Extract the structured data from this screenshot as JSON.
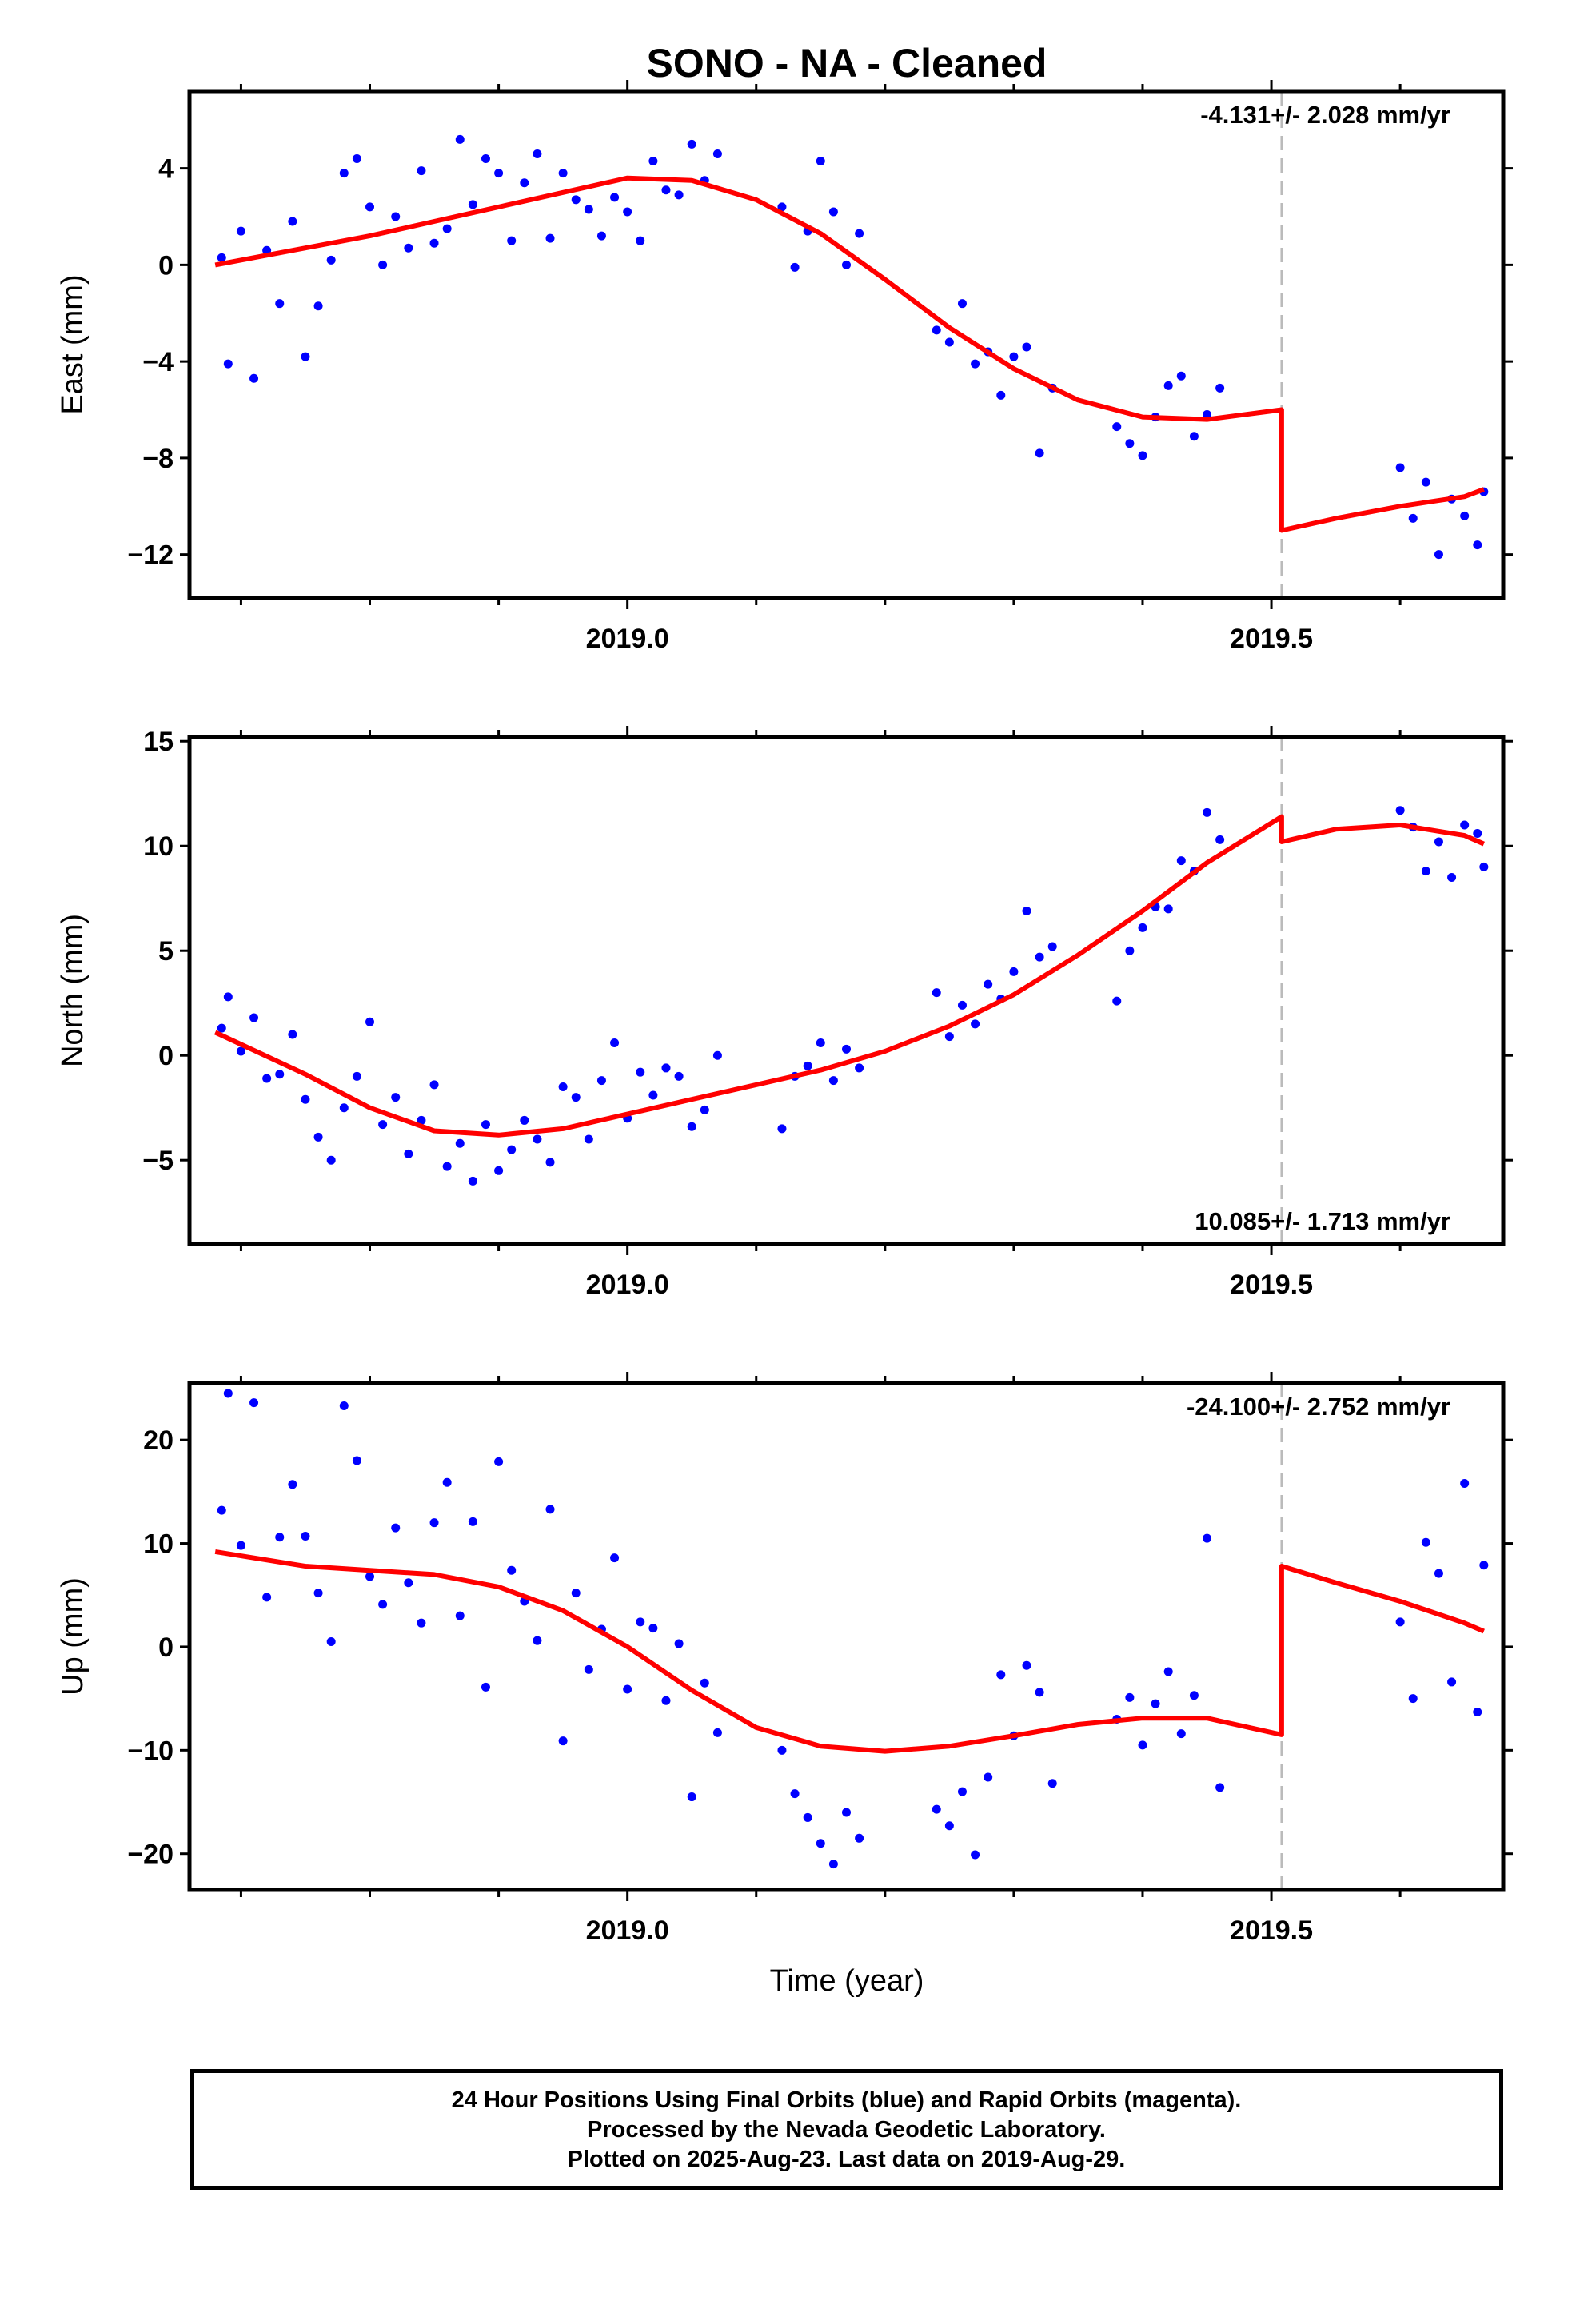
{
  "title": "SONO  - NA - Cleaned",
  "x_axis_label": "Time (year)",
  "footer": {
    "line1": "24 Hour Positions Using Final Orbits (blue) and Rapid Orbits (magenta).",
    "line2": "Processed by the Nevada Geodetic Laboratory.",
    "line3": "Plotted on 2025-Aug-23. Last data on 2019-Aug-29."
  },
  "colors": {
    "data_points": "#0000ff",
    "model_fit": "#ff0000",
    "offset_line": "#bbbbbb"
  },
  "chart_data": [
    {
      "type": "scatter",
      "ylabel": "East (mm)",
      "rate_label": "-4.131+/- 2.028 mm/yr",
      "rate_position": "top-right",
      "xlim": [
        2018.66,
        2019.68
      ],
      "ylim": [
        -13.8,
        7.2
      ],
      "xticks": [
        2019.0,
        2019.5
      ],
      "xtick_labels": [
        "2019.0",
        "2019.5"
      ],
      "yticks": [
        -12,
        -8,
        -4,
        0,
        4
      ],
      "yticks_minor": [],
      "offset_x": 2019.508,
      "fit_x": [
        2018.68,
        2018.75,
        2018.8,
        2018.85,
        2018.9,
        2018.95,
        2019.0,
        2019.05,
        2019.1,
        2019.15,
        2019.2,
        2019.25,
        2019.3,
        2019.35,
        2019.4,
        2019.45,
        2019.508,
        2019.508,
        2019.55,
        2019.6,
        2019.65,
        2019.665
      ],
      "fit_y": [
        0.0,
        0.7,
        1.2,
        1.8,
        2.4,
        3.0,
        3.6,
        3.5,
        2.7,
        1.3,
        -0.6,
        -2.6,
        -4.3,
        -5.6,
        -6.3,
        -6.4,
        -6.0,
        -11.0,
        -10.5,
        -10.0,
        -9.6,
        -9.3
      ],
      "points_x": [
        2018.685,
        2018.69,
        2018.7,
        2018.71,
        2018.72,
        2018.73,
        2018.74,
        2018.75,
        2018.76,
        2018.77,
        2018.78,
        2018.79,
        2018.8,
        2018.81,
        2018.82,
        2018.83,
        2018.84,
        2018.85,
        2018.86,
        2018.87,
        2018.88,
        2018.89,
        2018.9,
        2018.91,
        2018.92,
        2018.93,
        2018.94,
        2018.95,
        2018.96,
        2018.97,
        2018.98,
        2018.99,
        2019.0,
        2019.01,
        2019.02,
        2019.03,
        2019.04,
        2019.05,
        2019.06,
        2019.07,
        2019.12,
        2019.13,
        2019.14,
        2019.15,
        2019.16,
        2019.17,
        2019.18,
        2019.24,
        2019.25,
        2019.26,
        2019.27,
        2019.28,
        2019.29,
        2019.3,
        2019.31,
        2019.32,
        2019.33,
        2019.38,
        2019.39,
        2019.4,
        2019.41,
        2019.42,
        2019.43,
        2019.44,
        2019.45,
        2019.46,
        2019.6,
        2019.61,
        2019.62,
        2019.63,
        2019.64,
        2019.65,
        2019.66,
        2019.665
      ],
      "points_y": [
        0.3,
        -4.1,
        1.4,
        -4.7,
        0.6,
        -1.6,
        1.8,
        -3.8,
        -1.7,
        0.2,
        3.8,
        4.4,
        2.4,
        0.0,
        2.0,
        0.7,
        3.9,
        0.9,
        1.5,
        5.2,
        2.5,
        4.4,
        3.8,
        1.0,
        3.4,
        4.6,
        1.1,
        3.8,
        2.7,
        2.3,
        1.2,
        2.8,
        2.2,
        1.0,
        4.3,
        3.1,
        2.9,
        5.0,
        3.5,
        4.6,
        2.4,
        -0.1,
        1.4,
        4.3,
        2.2,
        0.0,
        1.3,
        -2.7,
        -3.2,
        -1.6,
        -4.1,
        -3.6,
        -5.4,
        -3.8,
        -3.4,
        -7.8,
        -5.1,
        -6.7,
        -7.4,
        -7.9,
        -6.3,
        -5.0,
        -4.6,
        -7.1,
        -6.2,
        -5.1,
        -8.4,
        -10.5,
        -9.0,
        -12.0,
        -9.7,
        -10.4,
        -11.6,
        -9.4
      ]
    },
    {
      "type": "scatter",
      "ylabel": "North (mm)",
      "rate_label": "10.085+/- 1.713 mm/yr",
      "rate_position": "bottom-right",
      "xlim": [
        2018.66,
        2019.68
      ],
      "ylim": [
        -9,
        15.2
      ],
      "xticks": [
        2019.0,
        2019.5
      ],
      "xtick_labels": [
        "2019.0",
        "2019.5"
      ],
      "yticks": [
        -5,
        0,
        5,
        10,
        15
      ],
      "yticks_minor": [],
      "offset_x": 2019.508,
      "fit_x": [
        2018.68,
        2018.75,
        2018.8,
        2018.85,
        2018.9,
        2018.95,
        2019.0,
        2019.05,
        2019.1,
        2019.15,
        2019.2,
        2019.25,
        2019.3,
        2019.35,
        2019.4,
        2019.45,
        2019.508,
        2019.508,
        2019.55,
        2019.6,
        2019.65,
        2019.665
      ],
      "fit_y": [
        1.1,
        -0.9,
        -2.5,
        -3.6,
        -3.8,
        -3.5,
        -2.8,
        -2.1,
        -1.4,
        -0.7,
        0.2,
        1.4,
        2.9,
        4.8,
        6.9,
        9.2,
        11.4,
        10.2,
        10.8,
        11.0,
        10.5,
        10.1
      ],
      "points_x": [
        2018.685,
        2018.69,
        2018.7,
        2018.71,
        2018.72,
        2018.73,
        2018.74,
        2018.75,
        2018.76,
        2018.77,
        2018.78,
        2018.79,
        2018.8,
        2018.81,
        2018.82,
        2018.83,
        2018.84,
        2018.85,
        2018.86,
        2018.87,
        2018.88,
        2018.89,
        2018.9,
        2018.91,
        2018.92,
        2018.93,
        2018.94,
        2018.95,
        2018.96,
        2018.97,
        2018.98,
        2018.99,
        2019.0,
        2019.01,
        2019.02,
        2019.03,
        2019.04,
        2019.05,
        2019.06,
        2019.07,
        2019.12,
        2019.13,
        2019.14,
        2019.15,
        2019.16,
        2019.17,
        2019.18,
        2019.24,
        2019.25,
        2019.26,
        2019.27,
        2019.28,
        2019.29,
        2019.3,
        2019.31,
        2019.32,
        2019.33,
        2019.38,
        2019.39,
        2019.4,
        2019.41,
        2019.42,
        2019.43,
        2019.44,
        2019.45,
        2019.46,
        2019.6,
        2019.61,
        2019.62,
        2019.63,
        2019.64,
        2019.65,
        2019.66,
        2019.665
      ],
      "points_y": [
        1.3,
        2.8,
        0.2,
        1.8,
        -1.1,
        -0.9,
        1.0,
        -2.1,
        -3.9,
        -5.0,
        -2.5,
        -1.0,
        1.6,
        -3.3,
        -2.0,
        -4.7,
        -3.1,
        -1.4,
        -5.3,
        -4.2,
        -6.0,
        -3.3,
        -5.5,
        -4.5,
        -3.1,
        -4.0,
        -5.1,
        -1.5,
        -2.0,
        -4.0,
        -1.2,
        0.6,
        -3.0,
        -0.8,
        -1.9,
        -0.6,
        -1.0,
        -3.4,
        -2.6,
        0.0,
        -3.5,
        -1.0,
        -0.5,
        0.6,
        -1.2,
        0.3,
        -0.6,
        3.0,
        0.9,
        2.4,
        1.5,
        3.4,
        2.7,
        4.0,
        6.9,
        4.7,
        5.2,
        2.6,
        5.0,
        6.1,
        7.1,
        7.0,
        9.3,
        8.8,
        11.6,
        10.3,
        11.7,
        10.9,
        8.8,
        10.2,
        8.5,
        11.0,
        10.6,
        9.0
      ]
    },
    {
      "type": "scatter",
      "ylabel": "Up (mm)",
      "rate_label": "-24.100+/- 2.752 mm/yr",
      "rate_position": "top-right",
      "xlim": [
        2018.66,
        2019.68
      ],
      "ylim": [
        -23.5,
        25.5
      ],
      "xticks": [
        2019.0,
        2019.5
      ],
      "xtick_labels": [
        "2019.0",
        "2019.5"
      ],
      "yticks": [
        -20,
        -10,
        0,
        10,
        20
      ],
      "yticks_minor": [],
      "offset_x": 2019.508,
      "fit_x": [
        2018.68,
        2018.75,
        2018.8,
        2018.85,
        2018.9,
        2018.95,
        2019.0,
        2019.05,
        2019.1,
        2019.15,
        2019.2,
        2019.25,
        2019.3,
        2019.35,
        2019.4,
        2019.45,
        2019.508,
        2019.508,
        2019.55,
        2019.6,
        2019.65,
        2019.665
      ],
      "fit_y": [
        9.2,
        7.8,
        7.4,
        7.0,
        5.8,
        3.5,
        0.0,
        -4.2,
        -7.8,
        -9.6,
        -10.1,
        -9.6,
        -8.6,
        -7.5,
        -6.9,
        -6.9,
        -8.5,
        7.8,
        6.2,
        4.4,
        2.3,
        1.5
      ],
      "points_x": [
        2018.685,
        2018.69,
        2018.7,
        2018.71,
        2018.72,
        2018.73,
        2018.74,
        2018.75,
        2018.76,
        2018.77,
        2018.78,
        2018.79,
        2018.8,
        2018.81,
        2018.82,
        2018.83,
        2018.84,
        2018.85,
        2018.86,
        2018.87,
        2018.88,
        2018.89,
        2018.9,
        2018.91,
        2018.92,
        2018.93,
        2018.94,
        2018.95,
        2018.96,
        2018.97,
        2018.98,
        2018.99,
        2019.0,
        2019.01,
        2019.02,
        2019.03,
        2019.04,
        2019.05,
        2019.06,
        2019.07,
        2019.12,
        2019.13,
        2019.14,
        2019.15,
        2019.16,
        2019.17,
        2019.18,
        2019.24,
        2019.25,
        2019.26,
        2019.27,
        2019.28,
        2019.29,
        2019.3,
        2019.31,
        2019.32,
        2019.33,
        2019.38,
        2019.39,
        2019.4,
        2019.41,
        2019.42,
        2019.43,
        2019.44,
        2019.45,
        2019.46,
        2019.6,
        2019.61,
        2019.62,
        2019.63,
        2019.64,
        2019.65,
        2019.66,
        2019.665
      ],
      "points_y": [
        13.2,
        24.5,
        9.8,
        23.6,
        4.8,
        10.6,
        15.7,
        10.7,
        5.2,
        0.5,
        23.3,
        18.0,
        6.8,
        4.1,
        11.5,
        6.2,
        2.3,
        12.0,
        15.9,
        3.0,
        12.1,
        -3.9,
        17.9,
        7.4,
        4.4,
        0.6,
        13.3,
        -9.1,
        5.2,
        -2.2,
        1.7,
        8.6,
        -4.1,
        2.4,
        1.8,
        -5.2,
        0.3,
        -14.5,
        -3.5,
        -8.3,
        -10.0,
        -14.2,
        -16.5,
        -19.0,
        -21.0,
        -16.0,
        -18.5,
        -15.7,
        -17.3,
        -14.0,
        -20.1,
        -12.6,
        -2.7,
        -8.6,
        -1.8,
        -4.4,
        -13.2,
        -7.0,
        -4.9,
        -9.5,
        -5.5,
        -2.4,
        -8.4,
        -4.7,
        10.5,
        -13.6,
        2.4,
        -5.0,
        10.1,
        7.1,
        -3.4,
        15.8,
        -6.3,
        7.9
      ]
    }
  ]
}
